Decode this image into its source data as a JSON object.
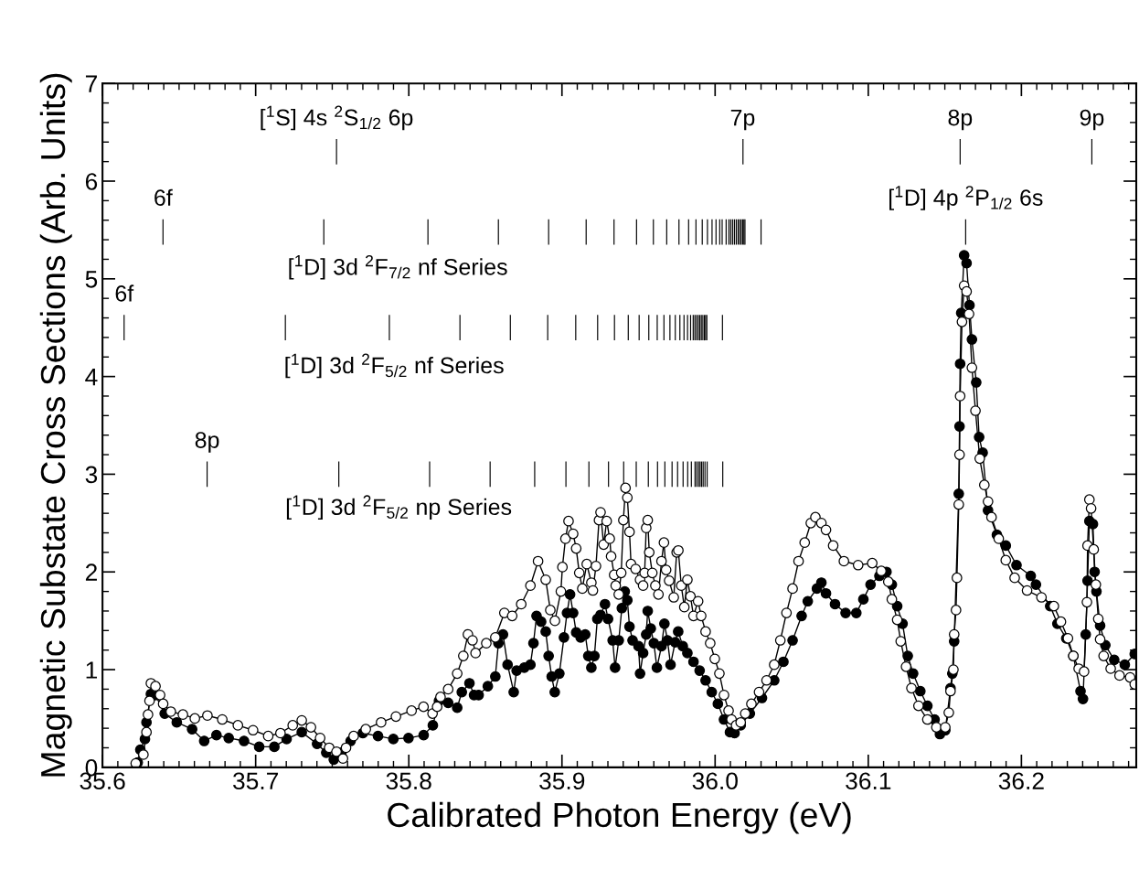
{
  "chart_data": {
    "type": "line",
    "xlabel": "Calibrated Photon Energy (eV)",
    "ylabel": "Magnetic Substate Cross Sections (Arb. Units)",
    "xlim": [
      35.6,
      36.275
    ],
    "ylim": [
      0,
      7
    ],
    "xticks": [
      35.6,
      {
        "value": 35.61,
        "label": null
      },
      {
        "value": 35.62,
        "label": null
      },
      {
        "value": 35.63,
        "label": null
      },
      {
        "value": 35.64,
        "label": null
      },
      {
        "value": 35.65,
        "label": null
      },
      {
        "value": 35.66,
        "label": null
      },
      {
        "value": 35.67,
        "label": null
      },
      {
        "value": 35.68,
        "label": null
      },
      {
        "value": 35.69,
        "label": null
      },
      35.7,
      {
        "value": 35.71,
        "label": null
      },
      {
        "value": 35.72,
        "label": null
      },
      {
        "value": 35.73,
        "label": null
      },
      {
        "value": 35.74,
        "label": null
      },
      {
        "value": 35.75,
        "label": null
      },
      {
        "value": 35.76,
        "label": null
      },
      {
        "value": 35.77,
        "label": null
      },
      {
        "value": 35.78,
        "label": null
      },
      {
        "value": 35.79,
        "label": null
      },
      35.8,
      {
        "value": 35.81,
        "label": null
      },
      {
        "value": 35.82,
        "label": null
      },
      {
        "value": 35.83,
        "label": null
      },
      {
        "value": 35.84,
        "label": null
      },
      {
        "value": 35.85,
        "label": null
      },
      {
        "value": 35.86,
        "label": null
      },
      {
        "value": 35.87,
        "label": null
      },
      {
        "value": 35.88,
        "label": null
      },
      {
        "value": 35.89,
        "label": null
      },
      35.9,
      {
        "value": 35.91,
        "label": null
      },
      {
        "value": 35.92,
        "label": null
      },
      {
        "value": 35.93,
        "label": null
      },
      {
        "value": 35.94,
        "label": null
      },
      {
        "value": 35.95,
        "label": null
      },
      {
        "value": 35.96,
        "label": null
      },
      {
        "value": 35.97,
        "label": null
      },
      {
        "value": 35.98,
        "label": null
      },
      {
        "value": 35.99,
        "label": null
      },
      {
        "value": 36.0,
        "label": "36.0"
      },
      {
        "value": 36.01,
        "label": null
      },
      {
        "value": 36.02,
        "label": null
      },
      {
        "value": 36.03,
        "label": null
      },
      {
        "value": 36.04,
        "label": null
      },
      {
        "value": 36.05,
        "label": null
      },
      {
        "value": 36.06,
        "label": null
      },
      {
        "value": 36.07,
        "label": null
      },
      {
        "value": 36.08,
        "label": null
      },
      {
        "value": 36.09,
        "label": null
      },
      36.1,
      {
        "value": 36.11,
        "label": null
      },
      {
        "value": 36.12,
        "label": null
      },
      {
        "value": 36.13,
        "label": null
      },
      {
        "value": 36.14,
        "label": null
      },
      {
        "value": 36.15,
        "label": null
      },
      {
        "value": 36.16,
        "label": null
      },
      {
        "value": 36.17,
        "label": null
      },
      {
        "value": 36.18,
        "label": null
      },
      {
        "value": 36.19,
        "label": null
      },
      36.2,
      {
        "value": 36.21,
        "label": null
      },
      {
        "value": 36.22,
        "label": null
      },
      {
        "value": 36.23,
        "label": null
      },
      {
        "value": 36.24,
        "label": null
      },
      {
        "value": 36.25,
        "label": null
      },
      {
        "value": 36.26,
        "label": null
      },
      {
        "value": 36.27,
        "label": null
      }
    ],
    "yticks": [
      0,
      {
        "value": 0.2,
        "label": null
      },
      {
        "value": 0.4,
        "label": null
      },
      {
        "value": 0.6,
        "label": null
      },
      {
        "value": 0.8,
        "label": null
      },
      1,
      {
        "value": 1.2,
        "label": null
      },
      {
        "value": 1.4,
        "label": null
      },
      {
        "value": 1.6,
        "label": null
      },
      {
        "value": 1.8,
        "label": null
      },
      2,
      {
        "value": 2.2,
        "label": null
      },
      {
        "value": 2.4,
        "label": null
      },
      {
        "value": 2.6,
        "label": null
      },
      {
        "value": 2.8,
        "label": null
      },
      3,
      {
        "value": 3.2,
        "label": null
      },
      {
        "value": 3.4,
        "label": null
      },
      {
        "value": 3.6,
        "label": null
      },
      {
        "value": 3.8,
        "label": null
      },
      4,
      {
        "value": 4.2,
        "label": null
      },
      {
        "value": 4.4,
        "label": null
      },
      {
        "value": 4.6,
        "label": null
      },
      {
        "value": 4.8,
        "label": null
      },
      5,
      {
        "value": 5.2,
        "label": null
      },
      {
        "value": 5.4,
        "label": null
      },
      {
        "value": 5.6,
        "label": null
      },
      {
        "value": 5.8,
        "label": null
      },
      6,
      {
        "value": 6.2,
        "label": null
      },
      {
        "value": 6.4,
        "label": null
      },
      {
        "value": 6.6,
        "label": null
      },
      {
        "value": 6.8,
        "label": null
      },
      7
    ],
    "marker": "circle",
    "line_style": "solid",
    "series": [
      {
        "color": "#000000",
        "x": [
          35.623,
          35.6247,
          35.6277,
          35.6287,
          35.6316,
          35.6346,
          35.6406,
          35.6485,
          35.6585,
          35.6664,
          35.6744,
          35.6824,
          35.6924,
          35.7023,
          35.7122,
          35.7202,
          35.7301,
          35.7401,
          35.7461,
          35.751,
          35.756,
          35.762,
          35.77,
          35.7799,
          35.7899,
          35.7998,
          35.8097,
          35.8157,
          35.8197,
          35.8257,
          35.8316,
          35.8346,
          35.8396,
          35.8426,
          35.8456,
          35.8516,
          35.8565,
          35.8585,
          35.8615,
          35.8645,
          35.8685,
          35.8704,
          35.8754,
          35.8794,
          35.8814,
          35.8834,
          35.8864,
          35.8894,
          35.8913,
          35.8933,
          35.8953,
          35.8983,
          35.9013,
          35.9033,
          35.9053,
          35.9073,
          35.9093,
          35.9122,
          35.9152,
          35.9172,
          35.9192,
          35.9212,
          35.9231,
          35.9252,
          35.9281,
          35.9301,
          35.9331,
          35.9347,
          35.9371,
          35.9391,
          35.941,
          35.9427,
          35.9441,
          35.9461,
          35.95,
          35.951,
          35.953,
          35.955,
          35.956,
          35.958,
          35.96,
          35.962,
          35.965,
          35.9669,
          35.9689,
          35.9709,
          35.9739,
          35.9759,
          35.9789,
          35.9819,
          35.9859,
          35.9899,
          35.9938,
          35.9978,
          36.0018,
          36.0058,
          36.0097,
          36.0127,
          36.0167,
          36.0227,
          36.0306,
          36.0386,
          36.0446,
          36.0506,
          36.0565,
          36.0605,
          36.0665,
          36.0694,
          36.0724,
          36.0783,
          36.0852,
          36.0922,
          36.0968,
          36.1015,
          36.1073,
          36.1119,
          36.1154,
          36.1189,
          36.1224,
          36.1258,
          36.1293,
          36.134,
          36.1386,
          36.1433,
          36.1468,
          36.1503,
          36.1537,
          36.1549,
          36.1561,
          36.1591,
          36.1596,
          36.16,
          36.1607,
          36.1626,
          36.1642,
          36.1661,
          36.1677,
          36.1705,
          36.1724,
          36.1747,
          36.1782,
          36.184,
          36.1898,
          36.1968,
          36.2061,
          36.2095,
          36.2188,
          36.2235,
          36.2293,
          36.2339,
          36.2386,
          36.2402,
          36.242,
          36.2432,
          36.2444,
          36.2467,
          36.2478,
          36.249,
          36.2514,
          36.2548,
          36.2606,
          36.2675,
          36.274
        ],
        "values": [
          0.05,
          0.18,
          0.29,
          0.46,
          0.75,
          0.74,
          0.55,
          0.46,
          0.39,
          0.27,
          0.33,
          0.3,
          0.27,
          0.21,
          0.21,
          0.29,
          0.36,
          0.24,
          0.15,
          0.08,
          0.15,
          0.27,
          0.35,
          0.32,
          0.29,
          0.3,
          0.33,
          0.43,
          0.68,
          0.66,
          0.61,
          0.77,
          0.86,
          0.74,
          0.74,
          0.83,
          0.93,
          1.27,
          1.36,
          1.05,
          0.77,
          0.99,
          1.02,
          1.05,
          1.27,
          1.55,
          1.49,
          1.39,
          1.14,
          0.93,
          0.77,
          0.96,
          1.33,
          1.58,
          1.77,
          1.58,
          1.38,
          1.33,
          1.36,
          1.14,
          1.02,
          1.14,
          1.52,
          1.56,
          1.67,
          1.52,
          1.3,
          1.02,
          1.3,
          1.63,
          1.8,
          1.71,
          1.44,
          1.3,
          1.24,
          0.96,
          1.17,
          1.36,
          1.6,
          1.42,
          1.27,
          1.02,
          1.24,
          1.47,
          1.3,
          1.05,
          1.28,
          1.39,
          1.24,
          1.17,
          1.08,
          0.99,
          0.89,
          0.77,
          0.65,
          0.49,
          0.36,
          0.35,
          0.43,
          0.55,
          0.71,
          0.89,
          1.08,
          1.3,
          1.55,
          1.7,
          1.83,
          1.89,
          1.78,
          1.67,
          1.58,
          1.58,
          1.72,
          1.87,
          1.96,
          2.0,
          1.87,
          1.65,
          1.47,
          1.14,
          0.96,
          0.78,
          0.63,
          0.49,
          0.34,
          0.38,
          0.81,
          0.96,
          1.29,
          2.8,
          3.49,
          4.13,
          4.65,
          5.24,
          5.16,
          4.73,
          4.38,
          3.94,
          3.38,
          3.22,
          2.63,
          2.38,
          2.27,
          2.07,
          1.96,
          1.87,
          1.65,
          1.47,
          1.32,
          1.14,
          0.78,
          0.7,
          1.36,
          1.91,
          2.52,
          2.49,
          2.0,
          1.8,
          1.45,
          1.25,
          1.1,
          1.05,
          1.16
        ]
      },
      {
        "color": "#ffffff",
        "x": [
          35.6217,
          35.6267,
          35.6287,
          35.6297,
          35.6307,
          35.6316,
          35.6346,
          35.6376,
          35.6396,
          35.6446,
          35.6525,
          35.6603,
          35.6685,
          35.6782,
          35.6884,
          35.6983,
          35.7082,
          35.7162,
          35.7242,
          35.7301,
          35.7361,
          35.7421,
          35.748,
          35.7528,
          35.757,
          35.759,
          35.764,
          35.7719,
          35.7819,
          35.7916,
          35.8018,
          35.8096,
          35.8155,
          35.8185,
          35.8207,
          35.8257,
          35.8316,
          35.8356,
          35.8386,
          35.8416,
          35.8436,
          35.8506,
          35.8565,
          35.8624,
          35.8675,
          35.8734,
          35.8794,
          35.8844,
          35.8894,
          35.8924,
          35.8954,
          35.8993,
          35.9003,
          35.9023,
          35.9043,
          35.9073,
          35.9093,
          35.9113,
          35.9133,
          35.9162,
          35.9192,
          35.9202,
          35.9222,
          35.9242,
          35.9252,
          35.9272,
          35.9292,
          35.9312,
          35.9321,
          35.9341,
          35.9351,
          35.9371,
          35.9387,
          35.9401,
          35.9415,
          35.9427,
          35.9441,
          35.9451,
          35.9481,
          35.951,
          35.953,
          35.954,
          35.955,
          35.956,
          35.957,
          35.959,
          35.961,
          35.963,
          35.965,
          35.9666,
          35.968,
          35.97,
          35.973,
          35.9749,
          35.976,
          35.9779,
          35.9799,
          35.9819,
          35.9839,
          35.9859,
          35.9889,
          35.9909,
          35.9938,
          35.9968,
          35.9998,
          36.0028,
          36.0058,
          36.0088,
          36.0107,
          36.0137,
          36.0167,
          36.0197,
          36.0237,
          36.0287,
          36.0336,
          36.0386,
          36.0426,
          36.0466,
          36.0506,
          36.0545,
          36.0585,
          36.0625,
          36.0655,
          36.0694,
          36.0724,
          36.0771,
          36.0841,
          36.0934,
          36.1026,
          36.1085,
          36.1131,
          36.1154,
          36.1189,
          36.1212,
          36.1247,
          36.1282,
          36.1328,
          36.1386,
          36.1445,
          36.1503,
          36.1526,
          36.1537,
          36.1556,
          36.1561,
          36.1573,
          36.1579,
          36.1591,
          36.1596,
          36.16,
          36.1612,
          36.1626,
          36.1642,
          36.1658,
          36.1677,
          36.17,
          36.1728,
          36.1758,
          36.1782,
          36.1805,
          36.1852,
          36.1898,
          36.1956,
          36.2037,
          36.2131,
          36.2212,
          36.2258,
          36.2304,
          36.2339,
          36.2374,
          36.2409,
          36.2428,
          36.2432,
          36.2444,
          36.2455,
          36.2472,
          36.2486,
          36.2502,
          36.2514,
          36.2537,
          36.2583,
          36.2641,
          36.271,
          36.274
        ],
        "values": [
          0.04,
          0.13,
          0.36,
          0.54,
          0.68,
          0.86,
          0.83,
          0.74,
          0.65,
          0.57,
          0.54,
          0.5,
          0.53,
          0.49,
          0.43,
          0.38,
          0.32,
          0.35,
          0.43,
          0.48,
          0.41,
          0.3,
          0.2,
          0.16,
          0.09,
          0.2,
          0.32,
          0.39,
          0.46,
          0.52,
          0.58,
          0.62,
          0.55,
          0.62,
          0.72,
          0.8,
          0.96,
          1.14,
          1.36,
          1.3,
          1.17,
          1.27,
          1.33,
          1.58,
          1.55,
          1.67,
          1.86,
          2.11,
          1.92,
          1.61,
          1.5,
          1.8,
          2.05,
          2.34,
          2.52,
          2.39,
          2.24,
          1.99,
          1.83,
          2.08,
          1.89,
          1.81,
          2.06,
          2.53,
          2.61,
          2.28,
          2.52,
          2.34,
          2.16,
          1.97,
          1.86,
          1.77,
          1.99,
          2.53,
          2.86,
          2.76,
          2.41,
          2.08,
          2.03,
          1.92,
          1.86,
          1.99,
          2.45,
          2.53,
          2.2,
          1.99,
          1.86,
          1.77,
          2.11,
          2.3,
          2.02,
          1.91,
          1.74,
          2.2,
          2.22,
          1.86,
          1.64,
          1.92,
          1.75,
          1.55,
          1.7,
          1.55,
          1.39,
          1.27,
          1.11,
          0.96,
          0.74,
          0.58,
          0.49,
          0.43,
          0.46,
          0.55,
          0.65,
          0.77,
          0.89,
          1.05,
          1.3,
          1.58,
          1.83,
          2.11,
          2.3,
          2.5,
          2.56,
          2.5,
          2.43,
          2.27,
          2.11,
          2.07,
          2.09,
          2.01,
          1.9,
          1.72,
          1.51,
          1.29,
          1.03,
          0.81,
          0.63,
          0.49,
          0.41,
          0.41,
          0.56,
          0.78,
          1.0,
          1.36,
          1.61,
          1.94,
          2.69,
          3.2,
          3.8,
          4.56,
          4.93,
          4.87,
          4.64,
          4.09,
          3.65,
          3.16,
          2.89,
          2.72,
          2.56,
          2.34,
          2.12,
          1.94,
          1.81,
          1.74,
          1.65,
          1.49,
          1.32,
          1.14,
          1.01,
          0.98,
          1.69,
          2.27,
          2.74,
          2.65,
          2.23,
          1.87,
          1.52,
          1.31,
          1.14,
          1.01,
          0.94,
          0.92,
          0.85
        ]
      },
      {
        "type": "bar",
        "color": "#000000",
        "x": [
          35.6141,
          35.6395,
          35.6683,
          35.7194,
          35.7445,
          35.7528,
          35.7543,
          35.7873,
          35.8125,
          35.8136,
          35.8334,
          35.8531,
          35.8585,
          35.8663,
          35.8822,
          35.8907,
          35.8913,
          35.9026,
          35.909,
          35.9158,
          35.9176,
          35.9233,
          35.9304,
          35.934,
          35.9343,
          35.9403,
          35.9433,
          35.9485,
          35.9487,
          35.9504,
          35.9564,
          35.9567,
          35.9597,
          35.9622,
          35.9624,
          35.9666,
          35.9672,
          35.9684,
          35.9705,
          35.9719,
          35.974,
          35.9755,
          35.9764,
          35.977,
          35.9791,
          35.9797,
          35.982,
          35.9821,
          35.9827,
          35.984,
          35.9845,
          35.9857,
          35.9868,
          35.9869,
          35.9875,
          35.9879,
          35.988,
          35.989,
          35.9892,
          35.99,
          35.9902,
          35.991,
          35.9912,
          35.9916,
          35.992,
          35.9922,
          35.993,
          35.9934,
          35.9938,
          35.9946,
          35.9948,
          35.995,
          35.998,
          36.0006,
          36.003,
          36.0046,
          36.0048,
          36.005,
          36.0072,
          36.009,
          36.0102,
          36.0114,
          36.0126,
          36.0138,
          36.015,
          36.016,
          36.017,
          36.018,
          36.0182,
          36.0188,
          36.0195,
          36.03,
          36.16,
          36.1636,
          36.246
        ],
        "base": [
          4.37,
          5.35,
          2.87,
          4.37,
          5.35,
          6.17,
          2.87,
          4.37,
          5.35,
          2.87,
          4.37,
          2.87,
          5.35,
          4.37,
          2.87,
          4.37,
          5.35,
          2.87,
          4.37,
          5.35,
          2.87,
          4.37,
          2.87,
          5.35,
          4.37,
          2.87,
          4.37,
          2.87,
          5.35,
          4.37,
          2.87,
          4.37,
          5.35,
          4.37,
          2.87,
          4.37,
          2.87,
          5.35,
          4.37,
          2.87,
          4.37,
          2.87,
          5.35,
          4.37,
          2.87,
          4.37,
          4.37,
          2.87,
          5.35,
          4.37,
          2.87,
          4.37,
          4.37,
          2.87,
          5.35,
          4.37,
          2.87,
          4.37,
          2.87,
          4.37,
          2.87,
          4.37,
          2.87,
          5.35,
          4.37,
          2.87,
          4.37,
          2.87,
          4.37,
          4.37,
          2.87,
          5.35,
          5.35,
          5.35,
          5.35,
          5.35,
          4.37,
          2.87,
          5.35,
          5.35,
          5.35,
          5.35,
          5.35,
          5.35,
          5.35,
          5.35,
          5.35,
          5.35,
          6.17,
          5.35,
          5.35,
          5.35,
          6.17,
          5.35,
          6.17
        ],
        "values": [
          0.26,
          0.26,
          0.26,
          0.26,
          0.26,
          0.26,
          0.26,
          0.26,
          0.26,
          0.26,
          0.26,
          0.26,
          0.26,
          0.26,
          0.26,
          0.26,
          0.26,
          0.26,
          0.26,
          0.26,
          0.26,
          0.26,
          0.26,
          0.26,
          0.26,
          0.26,
          0.26,
          0.26,
          0.26,
          0.26,
          0.26,
          0.26,
          0.26,
          0.26,
          0.26,
          0.26,
          0.26,
          0.26,
          0.26,
          0.26,
          0.26,
          0.26,
          0.26,
          0.26,
          0.26,
          0.26,
          0.26,
          0.26,
          0.26,
          0.26,
          0.26,
          0.26,
          0.26,
          0.26,
          0.26,
          0.26,
          0.26,
          0.26,
          0.26,
          0.26,
          0.26,
          0.26,
          0.26,
          0.26,
          0.26,
          0.26,
          0.26,
          0.26,
          0.26,
          0.26,
          0.26,
          0.26,
          0.26,
          0.26,
          0.26,
          0.26,
          0.26,
          0.26,
          0.26,
          0.26,
          0.26,
          0.26,
          0.26,
          0.26,
          0.26,
          0.26,
          0.26,
          0.26,
          0.26,
          0.26,
          0.26,
          0.26,
          0.26,
          0.26,
          0.26
        ]
      }
    ],
    "annotations": [
      {
        "text": "[$^{1}$S] 4s $^{2}$S$_{1/2}$ 6p",
        "x": 35.7528,
        "y": 6.43
      },
      {
        "text": "7p",
        "x": 36.018,
        "y": 6.43
      },
      {
        "text": "8p",
        "x": 36.16,
        "y": 6.43
      },
      {
        "text": "9p",
        "x": 36.246,
        "y": 6.43
      },
      {
        "text": "[$^{1}$D] 4p $^{2}$P$_{1/2}$ 6s",
        "x": 36.1636,
        "y": 5.61
      },
      {
        "text": "6f",
        "x": 35.6395,
        "y": 5.61
      },
      "[$^{1}$D] 3d $^{2}$F$_{7/2}$ nf Series",
      {
        "text": "6f",
        "x": 35.6141,
        "y": 4.63
      },
      "[$^{1}$D] 3d $^{2}$F$_{5/2}$ nf Series",
      {
        "text": "8p",
        "x": 35.6683,
        "y": 3.13
      },
      "[$^{1}$D] 3d $^{2}$F$_{5/2}$ np Series"
    ]
  }
}
